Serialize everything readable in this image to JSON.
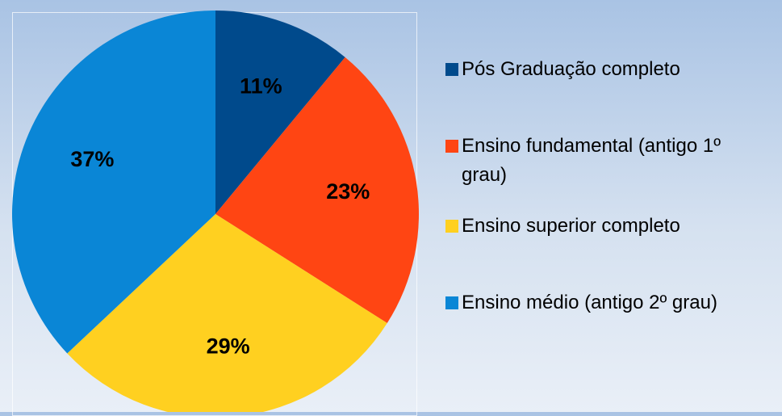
{
  "chart_data": {
    "type": "pie",
    "categories": [
      "Pós Graduação completo",
      "Ensino fundamental (antigo 1º grau)",
      "Ensino superior completo",
      "Ensino médio (antigo 2º grau)"
    ],
    "values": [
      11,
      23,
      29,
      37
    ],
    "value_labels": [
      "11%",
      "23%",
      "29%",
      "37%"
    ],
    "colors": [
      "#004a8c",
      "#ff4513",
      "#ffd020",
      "#0a86d6"
    ],
    "legend": "right"
  }
}
